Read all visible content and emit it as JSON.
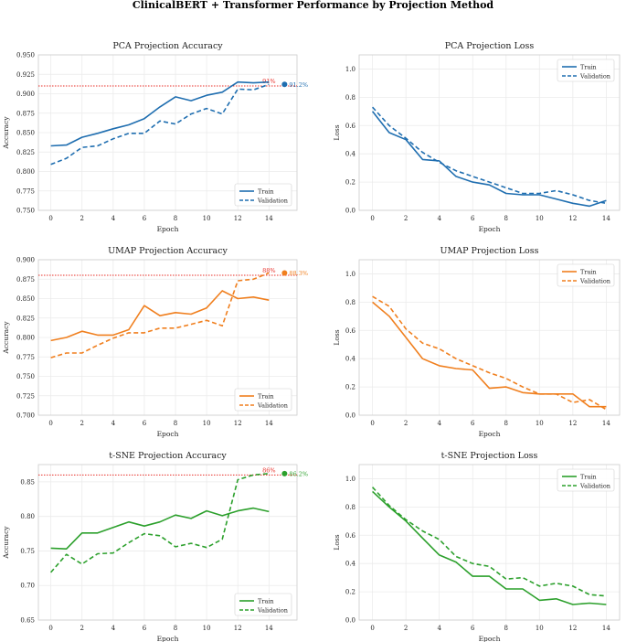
{
  "suptitle": "ClinicalBERT + Transformer Performance by Projection Method",
  "chart_data": [
    {
      "type": "line",
      "id": "pca-acc",
      "title": "PCA Projection Accuracy",
      "xlabel": "Epoch",
      "ylabel": "Accuracy",
      "color": "#1f6eb0",
      "xlim": [
        -0.8,
        15.8
      ],
      "ylim": [
        0.75,
        0.95
      ],
      "xticks": [
        0,
        2,
        4,
        6,
        8,
        10,
        12,
        14
      ],
      "yticks": [
        0.75,
        0.775,
        0.8,
        0.825,
        0.85,
        0.875,
        0.9,
        0.925,
        0.95
      ],
      "ytick_labels": [
        "0.750",
        "0.775",
        "0.800",
        "0.825",
        "0.850",
        "0.875",
        "0.900",
        "0.925",
        "0.950"
      ],
      "legend_position": "lower-right",
      "series": [
        {
          "name": "Train",
          "style": "solid",
          "values": [
            0.833,
            0.834,
            0.844,
            0.849,
            0.855,
            0.86,
            0.868,
            0.883,
            0.896,
            0.891,
            0.898,
            0.902,
            0.915,
            0.914,
            0.915
          ]
        },
        {
          "name": "Validation",
          "style": "dashed",
          "values": [
            0.809,
            0.817,
            0.831,
            0.833,
            0.842,
            0.849,
            0.849,
            0.865,
            0.861,
            0.874,
            0.881,
            0.874,
            0.906,
            0.905,
            0.912
          ]
        }
      ],
      "target": {
        "value": 0.91,
        "label": "91%"
      },
      "final": {
        "x": 15,
        "value": 0.912,
        "label": "91.2%"
      }
    },
    {
      "type": "line",
      "id": "pca-loss",
      "title": "PCA Projection Loss",
      "xlabel": "Epoch",
      "ylabel": "Loss",
      "color": "#1f6eb0",
      "xlim": [
        -0.8,
        14.8
      ],
      "ylim": [
        0,
        1.1
      ],
      "xticks": [
        0,
        2,
        4,
        6,
        8,
        10,
        12,
        14
      ],
      "yticks": [
        0,
        0.2,
        0.4,
        0.6,
        0.8,
        1.0
      ],
      "ytick_labels": [
        "0.0",
        "0.2",
        "0.4",
        "0.6",
        "0.8",
        "1.0"
      ],
      "legend_position": "top-right",
      "series": [
        {
          "name": "Train",
          "style": "solid",
          "values": [
            0.7,
            0.55,
            0.5,
            0.36,
            0.35,
            0.24,
            0.2,
            0.18,
            0.12,
            0.11,
            0.11,
            0.08,
            0.05,
            0.03,
            0.07
          ]
        },
        {
          "name": "Validation",
          "style": "dashed",
          "values": [
            0.73,
            0.6,
            0.51,
            0.41,
            0.34,
            0.28,
            0.24,
            0.2,
            0.16,
            0.12,
            0.12,
            0.14,
            0.11,
            0.07,
            0.05
          ]
        }
      ]
    },
    {
      "type": "line",
      "id": "umap-acc",
      "title": "UMAP Projection Accuracy",
      "xlabel": "Epoch",
      "ylabel": "Accuracy",
      "color": "#f07f1e",
      "xlim": [
        -0.8,
        15.8
      ],
      "ylim": [
        0.7,
        0.9
      ],
      "xticks": [
        0,
        2,
        4,
        6,
        8,
        10,
        12,
        14
      ],
      "yticks": [
        0.7,
        0.725,
        0.75,
        0.775,
        0.8,
        0.825,
        0.85,
        0.875,
        0.9
      ],
      "ytick_labels": [
        "0.700",
        "0.725",
        "0.750",
        "0.775",
        "0.800",
        "0.825",
        "0.850",
        "0.875",
        "0.900"
      ],
      "legend_position": "lower-right",
      "series": [
        {
          "name": "Train",
          "style": "solid",
          "values": [
            0.796,
            0.8,
            0.808,
            0.803,
            0.803,
            0.81,
            0.841,
            0.828,
            0.832,
            0.83,
            0.838,
            0.86,
            0.85,
            0.852,
            0.848
          ]
        },
        {
          "name": "Validation",
          "style": "dashed",
          "values": [
            0.774,
            0.78,
            0.78,
            0.79,
            0.799,
            0.806,
            0.806,
            0.812,
            0.812,
            0.817,
            0.822,
            0.815,
            0.873,
            0.875,
            0.883
          ]
        }
      ],
      "target": {
        "value": 0.88,
        "label": "88%"
      },
      "final": {
        "x": 15,
        "value": 0.883,
        "label": "88.3%"
      }
    },
    {
      "type": "line",
      "id": "umap-loss",
      "title": "UMAP Projection Loss",
      "xlabel": "Epoch",
      "ylabel": "Loss",
      "color": "#f07f1e",
      "xlim": [
        -0.8,
        14.8
      ],
      "ylim": [
        0,
        1.1
      ],
      "xticks": [
        0,
        2,
        4,
        6,
        8,
        10,
        12,
        14
      ],
      "yticks": [
        0,
        0.2,
        0.4,
        0.6,
        0.8,
        1.0
      ],
      "ytick_labels": [
        "0.0",
        "0.2",
        "0.4",
        "0.6",
        "0.8",
        "1.0"
      ],
      "legend_position": "top-right",
      "series": [
        {
          "name": "Train",
          "style": "solid",
          "values": [
            0.8,
            0.7,
            0.55,
            0.4,
            0.35,
            0.33,
            0.32,
            0.19,
            0.2,
            0.16,
            0.15,
            0.15,
            0.15,
            0.06,
            0.06
          ]
        },
        {
          "name": "Validation",
          "style": "dashed",
          "values": [
            0.84,
            0.77,
            0.61,
            0.51,
            0.47,
            0.4,
            0.35,
            0.3,
            0.26,
            0.2,
            0.15,
            0.15,
            0.09,
            0.11,
            0.04
          ]
        }
      ]
    },
    {
      "type": "line",
      "id": "tsne-acc",
      "title": "t-SNE Projection Accuracy",
      "xlabel": "Epoch",
      "ylabel": "Accuracy",
      "color": "#2ca02c",
      "xlim": [
        -0.8,
        15.8
      ],
      "ylim": [
        0.65,
        0.875
      ],
      "xticks": [
        0,
        2,
        4,
        6,
        8,
        10,
        12,
        14
      ],
      "yticks": [
        0.65,
        0.7,
        0.75,
        0.8,
        0.85
      ],
      "ytick_labels": [
        "0.65",
        "0.70",
        "0.75",
        "0.80",
        "0.85"
      ],
      "legend_position": "lower-right",
      "series": [
        {
          "name": "Train",
          "style": "solid",
          "values": [
            0.754,
            0.753,
            0.776,
            0.776,
            0.784,
            0.792,
            0.786,
            0.792,
            0.802,
            0.797,
            0.808,
            0.801,
            0.808,
            0.812,
            0.807
          ]
        },
        {
          "name": "Validation",
          "style": "dashed",
          "values": [
            0.719,
            0.745,
            0.731,
            0.746,
            0.747,
            0.762,
            0.775,
            0.772,
            0.756,
            0.761,
            0.755,
            0.767,
            0.853,
            0.86,
            0.862
          ]
        }
      ],
      "target": {
        "value": 0.86,
        "label": "86%"
      },
      "final": {
        "x": 15,
        "value": 0.862,
        "label": "86.2%"
      }
    },
    {
      "type": "line",
      "id": "tsne-loss",
      "title": "t-SNE Projection Loss",
      "xlabel": "Epoch",
      "ylabel": "Loss",
      "color": "#2ca02c",
      "xlim": [
        -0.8,
        14.8
      ],
      "ylim": [
        0,
        1.1
      ],
      "xticks": [
        0,
        2,
        4,
        6,
        8,
        10,
        12,
        14
      ],
      "yticks": [
        0,
        0.2,
        0.4,
        0.6,
        0.8,
        1.0
      ],
      "ytick_labels": [
        "0.0",
        "0.2",
        "0.4",
        "0.6",
        "0.8",
        "1.0"
      ],
      "legend_position": "top-right",
      "series": [
        {
          "name": "Train",
          "style": "solid",
          "values": [
            0.91,
            0.8,
            0.7,
            0.58,
            0.46,
            0.41,
            0.31,
            0.31,
            0.22,
            0.22,
            0.14,
            0.15,
            0.11,
            0.12,
            0.11
          ]
        },
        {
          "name": "Validation",
          "style": "dashed",
          "values": [
            0.94,
            0.81,
            0.71,
            0.63,
            0.57,
            0.45,
            0.4,
            0.38,
            0.29,
            0.3,
            0.24,
            0.26,
            0.24,
            0.18,
            0.17
          ]
        }
      ]
    }
  ],
  "target_color": "#e8302a"
}
